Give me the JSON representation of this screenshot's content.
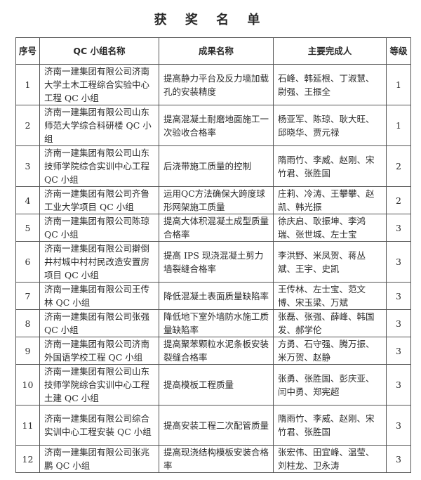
{
  "title": "获 奖 名 单",
  "headers": {
    "seq": "序号",
    "group": "QC 小组名称",
    "result": "成果名称",
    "people": "主要完成人",
    "grade": "等级"
  },
  "rows": [
    {
      "seq": "1",
      "group": "济南一建集团有限公司济南大学土木工程综合实验中心工程 QC 小组",
      "result": "提高静力平台及反力墙加载孔的安装精度",
      "people": "石峰、韩延根、丁淑慧、尉强、王振全",
      "grade": "1"
    },
    {
      "seq": "2",
      "group": "济南一建集团有限公司山东师范大学综合科研楼 QC 小组",
      "result": "提高混凝土耐磨地面施工一次验收合格率",
      "people": "杨亚军、陈琼、耿大旺、邱晓华、贾元禄",
      "grade": "1"
    },
    {
      "seq": "3",
      "group": "济南一建集团有限公司山东技师学院综合实训中心工程 QC 小组",
      "result": "后浇带施工质量的控制",
      "people": "隋雨竹、李威、赵刚、宋竹君、张胜国",
      "grade": "2"
    },
    {
      "seq": "4",
      "group": "济南一建集团有限公司齐鲁工业大学项目 QC 小组",
      "result": "运用QC方法确保大跨度球形网架施工质量",
      "people": "庄莉、冷涛、王攀攀、赵凯、韩光振",
      "grade": "2"
    },
    {
      "seq": "5",
      "group": "济南一建集团有限公司陈琼 QC 小组",
      "result": "提高大体积混凝土成型质量合格率",
      "people": "徐庆启、耿振坤、李鸿瑞、张世城、左士宝",
      "grade": "3"
    },
    {
      "seq": "6",
      "group": "济南一建集团有限公司擀倒井村城中村村民改造安置房项目 QC 小组",
      "result": "提高 IPS 现浇混凝土剪力墙裂缝合格率",
      "people": "李洪野、米凤贺、蒋丛斌、王宇、史凯",
      "grade": "3"
    },
    {
      "seq": "7",
      "group": "济南一建集团有限公司王传林 QC 小组",
      "result": "降低混凝土表面质量缺陷率",
      "people": "王传林、左士宝、范文博、宋玉梁、万斌",
      "grade": "3"
    },
    {
      "seq": "8",
      "group": "济南一建集团有限公司张强 QC 小组",
      "result": "降低地下室外墙防水施工质量缺陷率",
      "people": "张磊、张强、薛峰、韩国发、郝学伦",
      "grade": "3"
    },
    {
      "seq": "9",
      "group": "济南一建集团有限公司济南外国语学校工程 QC 小组",
      "result": "提高聚苯颗粒水泥条板安装裂缝合格率",
      "people": "方勇、石守强、腾万振、米万贺、赵静",
      "grade": "3"
    },
    {
      "seq": "10",
      "group": "济南一建集团有限公司山东技师学院综合实训中心工程土建 QC 小组",
      "result": "提高模板工程质量",
      "people": "张勇、张胜国、彭庆亚、闫中勇、郑宪超",
      "grade": "3"
    },
    {
      "seq": "11",
      "group": "济南一建集团有限公司综合实训中心工程安装 QC 小组",
      "result": "提高安装工程二次配管质量",
      "people": "隋雨竹、李威、赵刚、宋竹君、张胜国",
      "grade": "3"
    },
    {
      "seq": "12",
      "group": "济南一建集团有限公司张兆鹏 QC 小组",
      "result": "提高现浇结构模板安装合格率",
      "people": "张宏伟、田宜峰、温莹、刘柱龙、卫永涛",
      "grade": "3"
    }
  ]
}
